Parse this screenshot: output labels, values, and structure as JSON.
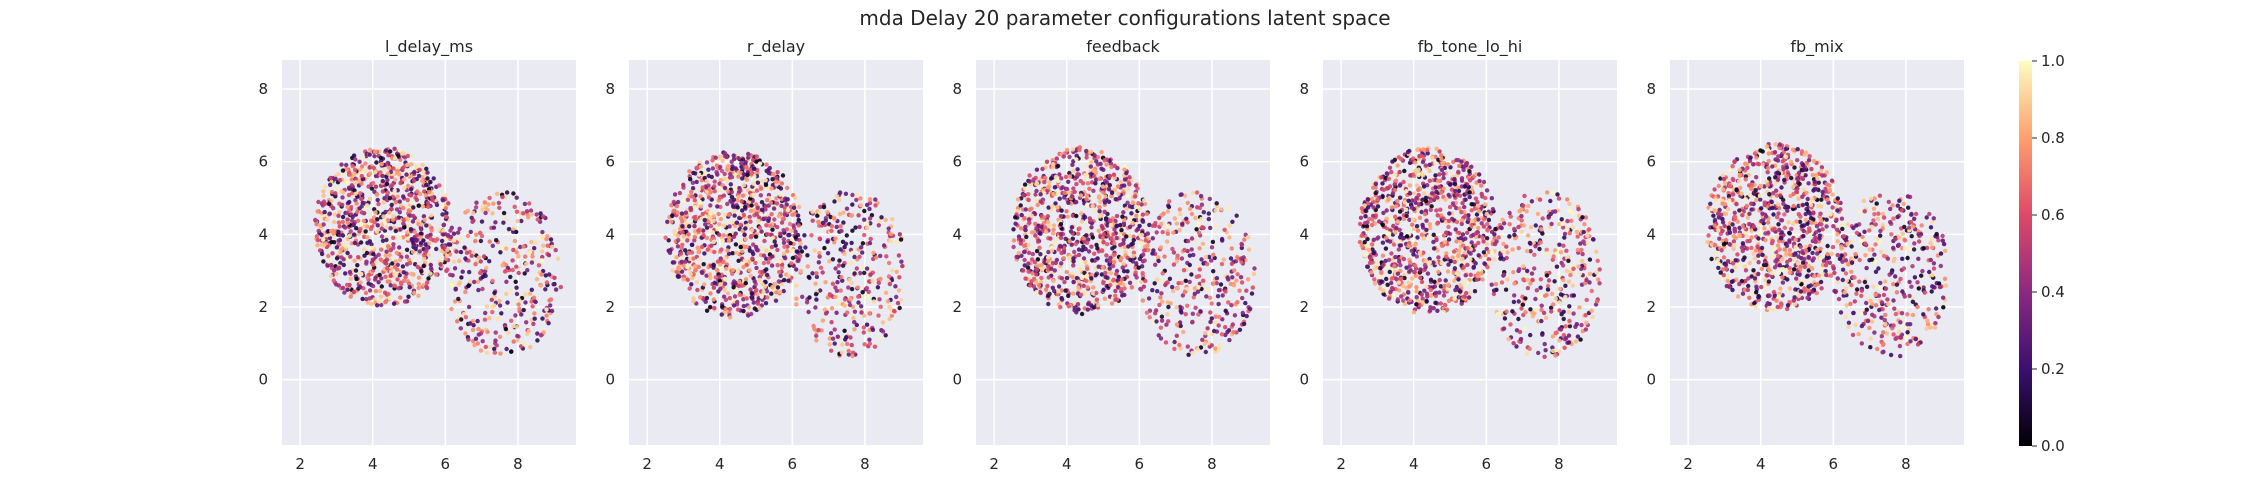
{
  "figure": {
    "title": "mda Delay 20 parameter configurations latent space"
  },
  "chart_data": [
    {
      "type": "scatter",
      "title": "l_delay_ms",
      "xlabel": "",
      "ylabel": "",
      "xlim": [
        1.5,
        9.6
      ],
      "ylim": [
        -1.8,
        8.8
      ],
      "xticks": [
        2,
        4,
        6,
        8
      ],
      "yticks": [
        0,
        2,
        4,
        6,
        8
      ],
      "xtick_labels": [
        "2",
        "4",
        "6",
        "8"
      ],
      "ytick_labels": [
        "0",
        "2",
        "4",
        "6",
        "8"
      ],
      "grid": true,
      "colormap": "magma",
      "point_count_approx": 1300,
      "cloud": {
        "lobes": [
          {
            "cx": 4.3,
            "cy": 4.2,
            "rx": 1.9,
            "ry": 2.2
          },
          {
            "cx": 7.6,
            "cy": 2.9,
            "rx": 1.6,
            "ry": 2.3
          }
        ]
      }
    },
    {
      "type": "scatter",
      "title": "r_delay",
      "xlabel": "",
      "ylabel": "",
      "xlim": [
        1.5,
        9.6
      ],
      "ylim": [
        -1.8,
        8.8
      ],
      "xticks": [
        2,
        4,
        6,
        8
      ],
      "yticks": [
        0,
        2,
        4,
        6,
        8
      ],
      "xtick_labels": [
        "2",
        "4",
        "6",
        "8"
      ],
      "ytick_labels": [
        "0",
        "2",
        "4",
        "6",
        "8"
      ],
      "grid": true,
      "colormap": "magma",
      "point_count_approx": 1300,
      "cloud": {
        "lobes": [
          {
            "cx": 4.4,
            "cy": 4.0,
            "rx": 1.9,
            "ry": 2.3
          },
          {
            "cx": 7.6,
            "cy": 2.9,
            "rx": 1.6,
            "ry": 2.3
          }
        ]
      }
    },
    {
      "type": "scatter",
      "title": "feedback",
      "xlabel": "",
      "ylabel": "",
      "xlim": [
        1.5,
        9.6
      ],
      "ylim": [
        -1.8,
        8.8
      ],
      "xticks": [
        2,
        4,
        6,
        8
      ],
      "yticks": [
        0,
        2,
        4,
        6,
        8
      ],
      "xtick_labels": [
        "2",
        "4",
        "6",
        "8"
      ],
      "ytick_labels": [
        "0",
        "2",
        "4",
        "6",
        "8"
      ],
      "grid": true,
      "colormap": "magma",
      "point_count_approx": 1300,
      "cloud": {
        "lobes": [
          {
            "cx": 4.4,
            "cy": 4.1,
            "rx": 1.9,
            "ry": 2.3
          },
          {
            "cx": 7.6,
            "cy": 2.9,
            "rx": 1.6,
            "ry": 2.3
          }
        ]
      }
    },
    {
      "type": "scatter",
      "title": "fb_tone_lo_hi",
      "xlabel": "",
      "ylabel": "",
      "xlim": [
        1.5,
        9.6
      ],
      "ylim": [
        -1.8,
        8.8
      ],
      "xticks": [
        2,
        4,
        6,
        8
      ],
      "yticks": [
        0,
        2,
        4,
        6,
        8
      ],
      "xtick_labels": [
        "2",
        "4",
        "6",
        "8"
      ],
      "ytick_labels": [
        "0",
        "2",
        "4",
        "6",
        "8"
      ],
      "grid": true,
      "colormap": "magma",
      "point_count_approx": 1300,
      "cloud": {
        "lobes": [
          {
            "cx": 4.4,
            "cy": 4.1,
            "rx": 1.9,
            "ry": 2.3
          },
          {
            "cx": 7.6,
            "cy": 2.9,
            "rx": 1.6,
            "ry": 2.3
          }
        ]
      }
    },
    {
      "type": "scatter",
      "title": "fb_mix",
      "xlabel": "",
      "ylabel": "",
      "xlim": [
        1.5,
        9.6
      ],
      "ylim": [
        -1.8,
        8.8
      ],
      "xticks": [
        2,
        4,
        6,
        8
      ],
      "yticks": [
        0,
        2,
        4,
        6,
        8
      ],
      "xtick_labels": [
        "2",
        "4",
        "6",
        "8"
      ],
      "ytick_labels": [
        "0",
        "2",
        "4",
        "6",
        "8"
      ],
      "grid": true,
      "colormap": "magma",
      "point_count_approx": 1300,
      "cloud": {
        "lobes": [
          {
            "cx": 4.4,
            "cy": 4.2,
            "rx": 1.9,
            "ry": 2.3
          },
          {
            "cx": 7.6,
            "cy": 2.9,
            "rx": 1.6,
            "ry": 2.3
          }
        ]
      }
    }
  ],
  "colorbar": {
    "min": 0.0,
    "max": 1.0,
    "ticks": [
      0.0,
      0.2,
      0.4,
      0.6,
      0.8,
      1.0
    ],
    "tick_labels": [
      "0.0",
      "0.2",
      "0.4",
      "0.6",
      "0.8",
      "1.0"
    ],
    "colormap": "magma"
  },
  "colors": {
    "axes_bg": "#eaeaf2",
    "grid": "#ffffff",
    "text": "#262626",
    "magma_stops": [
      "#000004",
      "#3b0f70",
      "#8c2981",
      "#de4968",
      "#fe9f6d",
      "#fcfdbf"
    ]
  }
}
